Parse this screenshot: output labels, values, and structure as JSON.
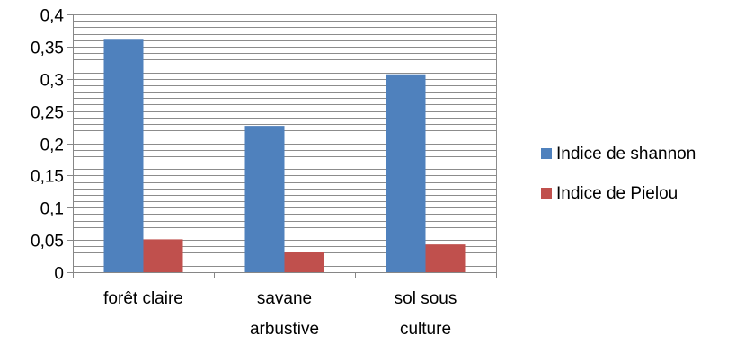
{
  "chart_data": {
    "type": "bar",
    "categories": [
      [
        "forêt claire"
      ],
      [
        "savane",
        "arbustive"
      ],
      [
        "sol sous",
        "culture"
      ]
    ],
    "series": [
      {
        "name": "Indice de shannon",
        "values": [
          0.362,
          0.227,
          0.307
        ],
        "color": "#4F81BD"
      },
      {
        "name": "Indice de Pielou",
        "values": [
          0.051,
          0.032,
          0.043
        ],
        "color": "#C0504D"
      }
    ],
    "ylim": [
      0,
      0.4
    ],
    "yticks": [
      0,
      0.05,
      0.1,
      0.15,
      0.2,
      0.25,
      0.3,
      0.35,
      0.4
    ],
    "ytick_labels": [
      "0",
      "0,05",
      "0,1",
      "0,15",
      "0,2",
      "0,25",
      "0,3",
      "0,35",
      "0,4"
    ],
    "minor_gridline_step": 0.01,
    "grid": true,
    "legend_position": "right",
    "title": "",
    "xlabel": "",
    "ylabel": ""
  }
}
